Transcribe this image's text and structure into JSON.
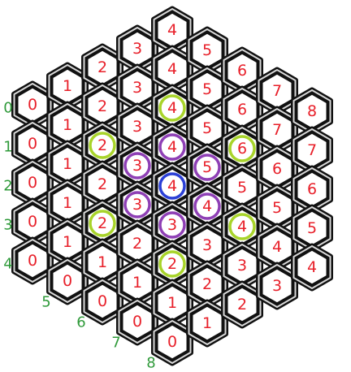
{
  "grid": {
    "rows": [
      {
        "row": 0,
        "label": "0",
        "values": [
          "0",
          "1",
          "2",
          "3",
          "4"
        ]
      },
      {
        "row": 1,
        "label": "1",
        "values": [
          "0",
          "1",
          "2",
          "3",
          "4",
          "5"
        ]
      },
      {
        "row": 2,
        "label": "2",
        "values": [
          "0",
          "1",
          "2",
          "3",
          "4",
          "5",
          "6"
        ]
      },
      {
        "row": 3,
        "label": "3",
        "values": [
          "0",
          "1",
          "2",
          "3",
          "4",
          "5",
          "6",
          "7"
        ]
      },
      {
        "row": 4,
        "label": "4",
        "values": [
          "0",
          "1",
          "2",
          "3",
          "4",
          "5",
          "6",
          "7",
          "8"
        ]
      },
      {
        "row": 5,
        "label": "5",
        "values": [
          "0",
          "1",
          "2",
          "3",
          "4",
          "5",
          "6",
          "7"
        ]
      },
      {
        "row": 6,
        "label": "6",
        "values": [
          "0",
          "1",
          "2",
          "3",
          "4",
          "5",
          "6"
        ]
      },
      {
        "row": 7,
        "label": "7",
        "values": [
          "0",
          "1",
          "2",
          "3",
          "4",
          "5"
        ]
      },
      {
        "row": 8,
        "label": "8",
        "values": [
          "0",
          "1",
          "2",
          "3",
          "4"
        ]
      }
    ]
  },
  "colors": {
    "center": "#2a3fd6",
    "ring_one": "#8e3fb5",
    "ring_two": "#a8d42a"
  },
  "highlights": [
    {
      "ring": "center",
      "row": 4,
      "col": 4
    },
    {
      "ring": "ring_one",
      "row": 3,
      "col": 3
    },
    {
      "ring": "ring_one",
      "row": 3,
      "col": 4
    },
    {
      "ring": "ring_one",
      "row": 4,
      "col": 3
    },
    {
      "ring": "ring_one",
      "row": 4,
      "col": 5
    },
    {
      "ring": "ring_one",
      "row": 5,
      "col": 3
    },
    {
      "ring": "ring_one",
      "row": 5,
      "col": 4
    },
    {
      "ring": "ring_two",
      "row": 2,
      "col": 2
    },
    {
      "ring": "ring_two",
      "row": 2,
      "col": 4
    },
    {
      "ring": "ring_two",
      "row": 4,
      "col": 2
    },
    {
      "ring": "ring_two",
      "row": 4,
      "col": 6
    },
    {
      "ring": "ring_two",
      "row": 6,
      "col": 2
    },
    {
      "ring": "ring_two",
      "row": 6,
      "col": 4
    }
  ]
}
